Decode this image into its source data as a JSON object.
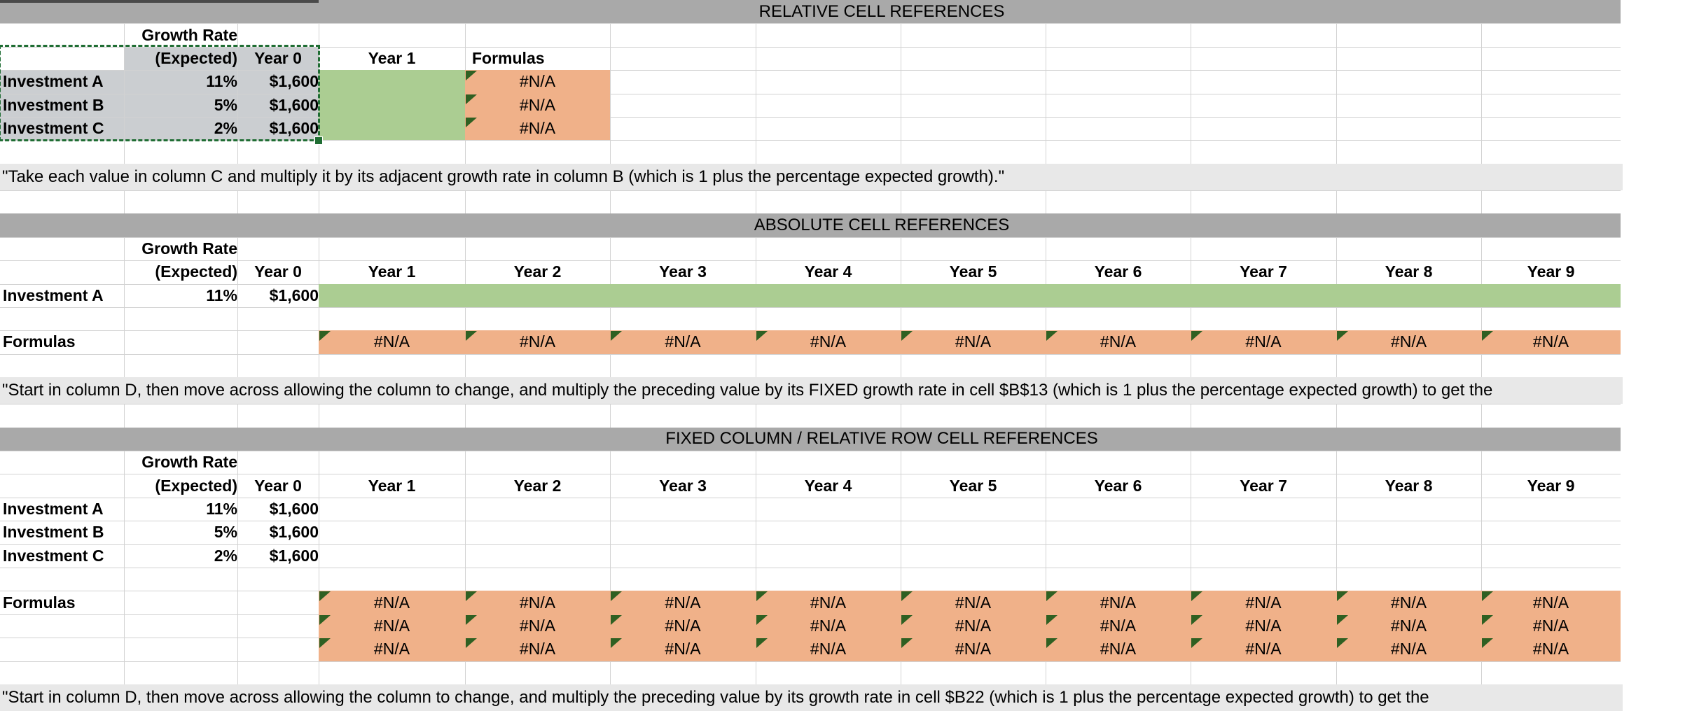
{
  "banners": [
    {
      "title": "RELATIVE CELL REFERENCES"
    },
    {
      "title": "ABSOLUTE CELL REFERENCES"
    },
    {
      "title": "FIXED COLUMN / RELATIVE ROW CELL REFERENCES"
    }
  ],
  "quotes": [
    {
      "text": "\"Take each value in column C and multiply it by its adjacent growth rate in column B (which is 1 plus the percentage expected growth).\""
    },
    {
      "text": "\"Start in column D, then move across allowing the column to change, and multiply the preceding value by its FIXED growth rate in cell $B$13 (which is 1 plus the percentage expected growth) to get the"
    },
    {
      "text": "\"Start in column D, then move across allowing the column to change, and multiply the preceding value by its growth rate in cell $B22 (which is 1 plus the percentage expected growth) to get the"
    }
  ],
  "headers": {
    "growth_rate": "Growth Rate",
    "expected": "(Expected)",
    "year0": "Year 0",
    "formulas": "Formulas",
    "years": [
      "Year 1",
      "Year 2",
      "Year 3",
      "Year 4",
      "Year 5",
      "Year 6",
      "Year 7",
      "Year 8",
      "Year 9"
    ]
  },
  "section1": {
    "rows": [
      {
        "label": "Investment A",
        "rate": "11%",
        "year0": "$1,600",
        "formula": "#N/A"
      },
      {
        "label": "Investment B",
        "rate": "5%",
        "year0": "$1,600",
        "formula": "#N/A"
      },
      {
        "label": "Investment C",
        "rate": "2%",
        "year0": "$1,600",
        "formula": "#N/A"
      }
    ]
  },
  "section2": {
    "row": {
      "label": "Investment A",
      "rate": "11%",
      "year0": "$1,600"
    },
    "formulas_label": "Formulas",
    "na_values": [
      "#N/A",
      "#N/A",
      "#N/A",
      "#N/A",
      "#N/A",
      "#N/A",
      "#N/A",
      "#N/A",
      "#N/A"
    ]
  },
  "section3": {
    "rows": [
      {
        "label": "Investment A",
        "rate": "11%",
        "year0": "$1,600"
      },
      {
        "label": "Investment B",
        "rate": "5%",
        "year0": "$1,600"
      },
      {
        "label": "Investment C",
        "rate": "2%",
        "year0": "$1,600"
      }
    ],
    "formulas_label": "Formulas",
    "na_grid": [
      [
        "#N/A",
        "#N/A",
        "#N/A",
        "#N/A",
        "#N/A",
        "#N/A",
        "#N/A",
        "#N/A",
        "#N/A"
      ],
      [
        "#N/A",
        "#N/A",
        "#N/A",
        "#N/A",
        "#N/A",
        "#N/A",
        "#N/A",
        "#N/A",
        "#N/A"
      ],
      [
        "#N/A",
        "#N/A",
        "#N/A",
        "#N/A",
        "#N/A",
        "#N/A",
        "#N/A",
        "#N/A",
        "#N/A"
      ]
    ]
  },
  "colors": {
    "banner_gray": "#a9a9a9",
    "green_fill": "#abcd92",
    "orange_fill": "#f0b189",
    "error_triangle": "#2f6022",
    "selection_gray": "#cbced1",
    "quote_bg": "#e8e8e8",
    "gridline": "#d2d2d2",
    "copy_border_green": "#1f6d33"
  }
}
